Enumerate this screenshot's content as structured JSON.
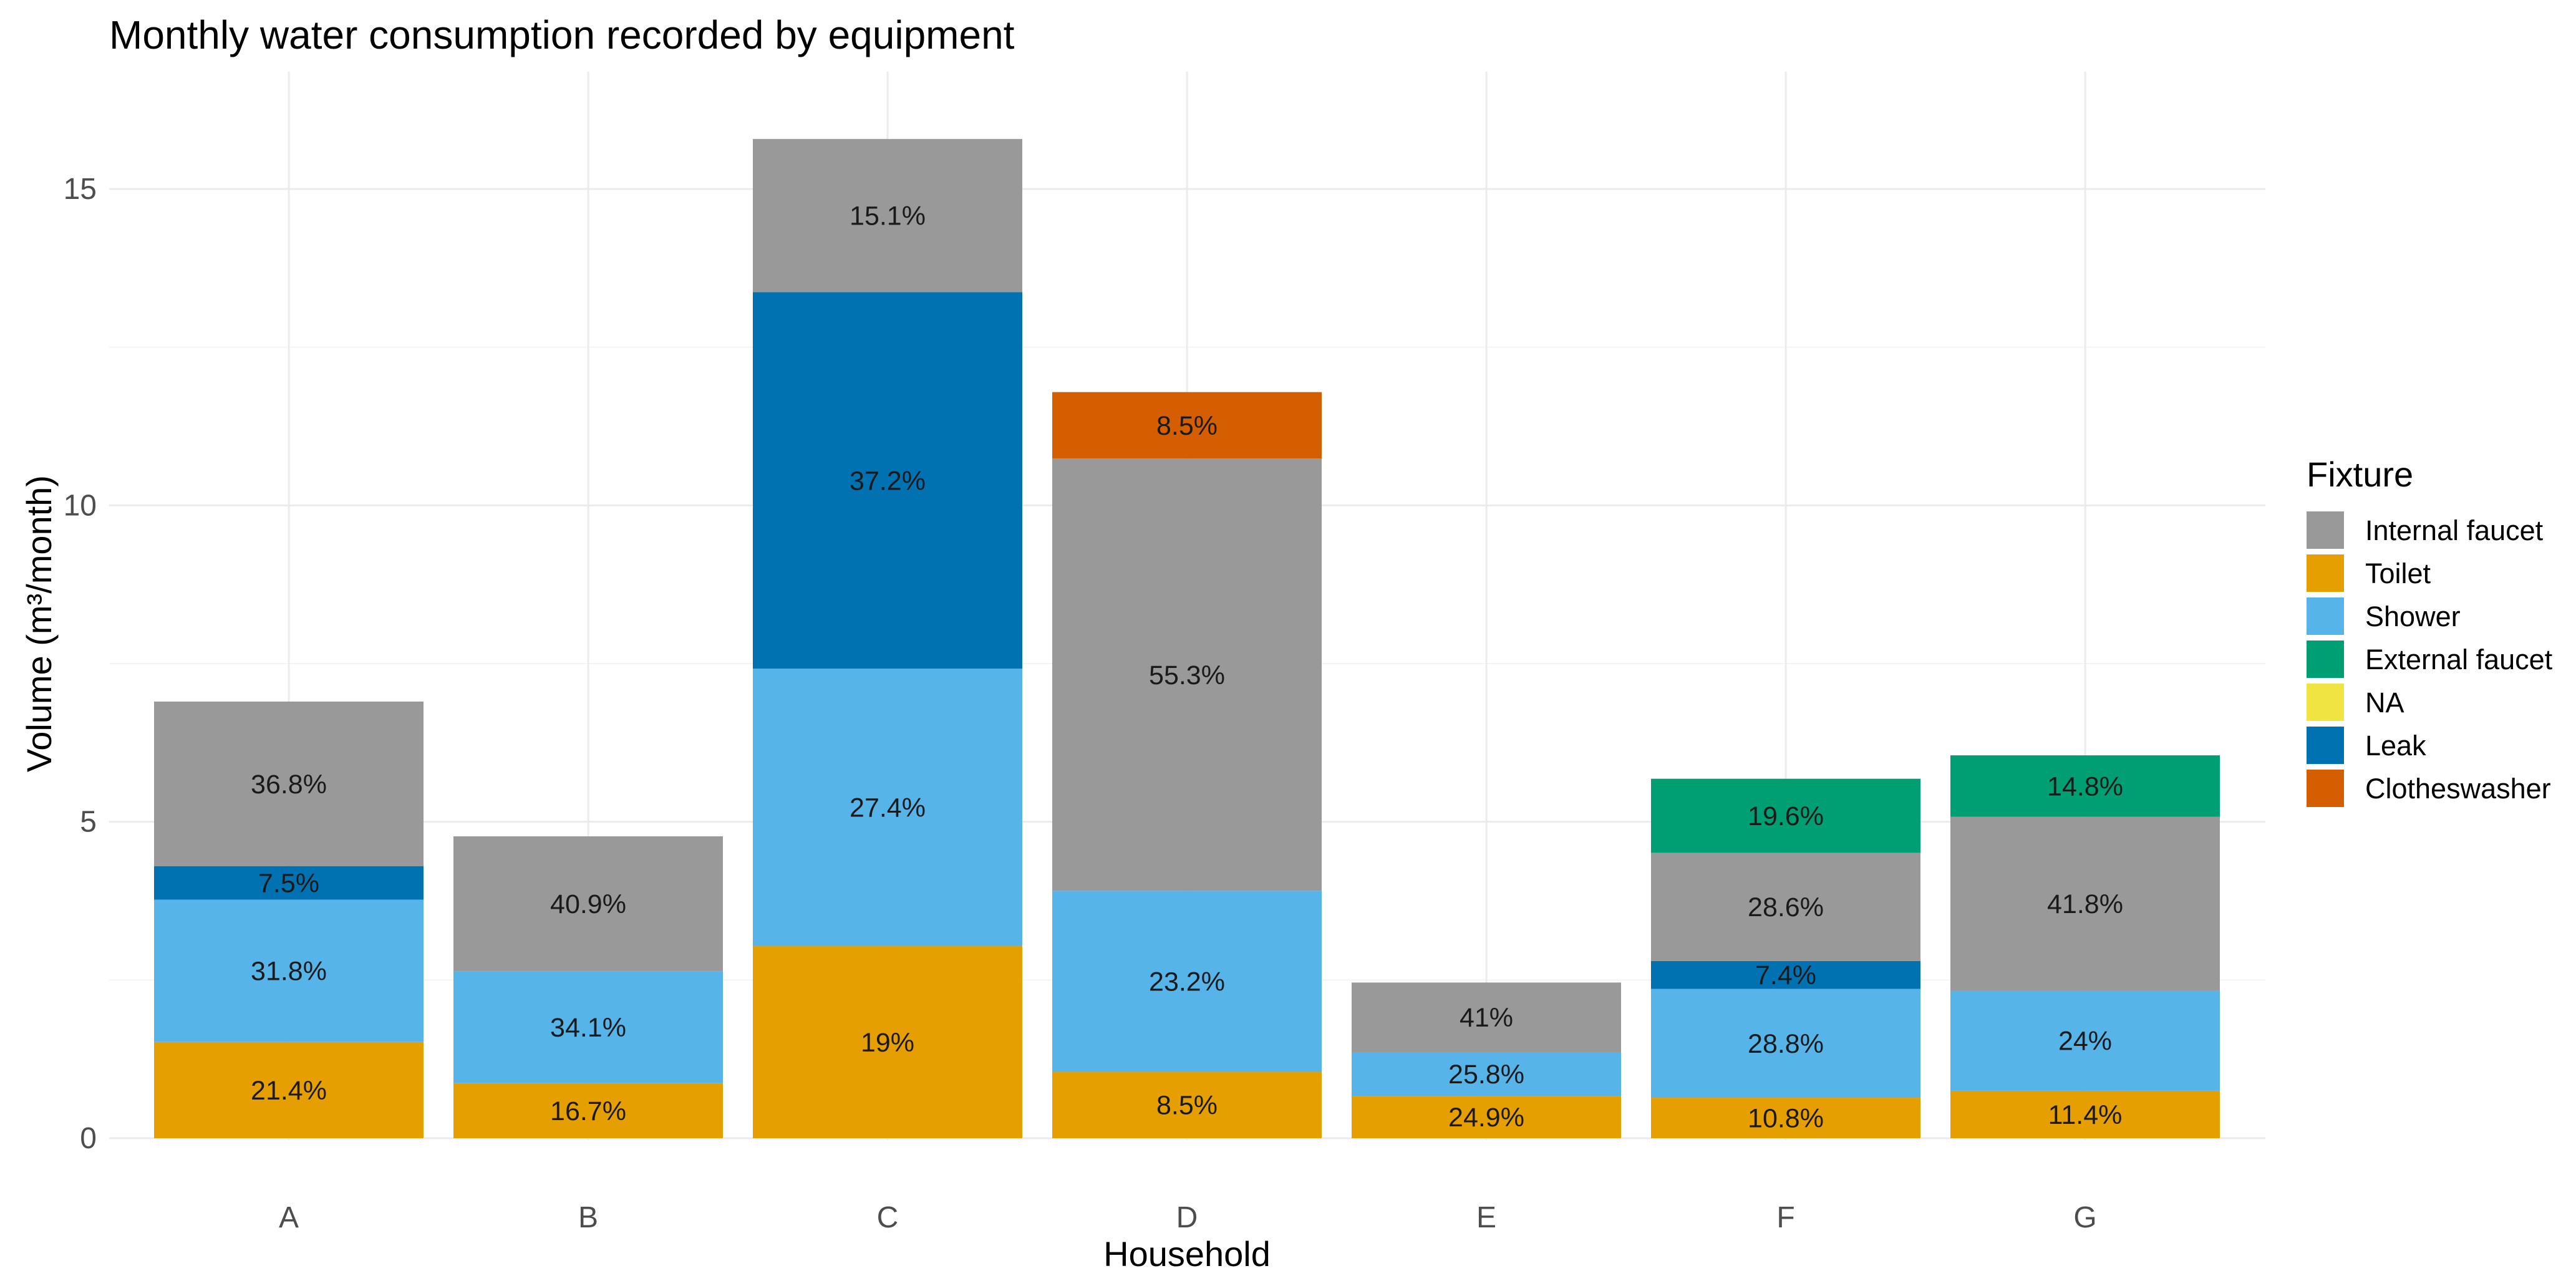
{
  "chart_data": {
    "type": "bar",
    "stacked": true,
    "title": "Monthly water consumption recorded by equipment",
    "xlabel": "Household",
    "ylabel": "Volume (m³/month)",
    "ylim": [
      0,
      16.0
    ],
    "yticks": [
      0,
      5,
      10,
      15
    ],
    "grid": true,
    "categories": [
      "A",
      "B",
      "C",
      "D",
      "E",
      "F",
      "G"
    ],
    "legend": {
      "title": "Fixture",
      "position": "right",
      "entries": [
        {
          "name": "Internal faucet",
          "color": "#999999"
        },
        {
          "name": "Toilet",
          "color": "#E69F00"
        },
        {
          "name": "Shower",
          "color": "#56B4E9"
        },
        {
          "name": "External faucet",
          "color": "#009E73"
        },
        {
          "name": "NA",
          "color": "#F0E442"
        },
        {
          "name": "Leak",
          "color": "#0072B2"
        },
        {
          "name": "Clotheswasher",
          "color": "#D55E00"
        }
      ]
    },
    "stack_order": [
      "Toilet",
      "Shower",
      "Leak",
      "Internal faucet",
      "External faucet",
      "Clotheswasher"
    ],
    "series": [
      {
        "name": "Toilet",
        "color": "#E69F00",
        "values": [
          1.52,
          0.87,
          3.04,
          1.05,
          0.67,
          0.64,
          0.75
        ],
        "labels": [
          "21.4%",
          "16.7%",
          "19%",
          "8.5%",
          "24.9%",
          "10.8%",
          "11.4%"
        ]
      },
      {
        "name": "Shower",
        "color": "#56B4E9",
        "values": [
          2.25,
          1.77,
          4.38,
          2.86,
          0.69,
          1.72,
          1.58
        ],
        "labels": [
          "31.8%",
          "34.1%",
          "27.4%",
          "23.2%",
          "25.8%",
          "28.8%",
          "24%"
        ]
      },
      {
        "name": "Leak",
        "color": "#0072B2",
        "values": [
          0.53,
          0,
          5.95,
          0,
          0,
          0.44,
          0
        ],
        "labels": [
          "7.5%",
          "",
          "37.2%",
          "",
          "",
          "7.4%",
          ""
        ]
      },
      {
        "name": "Internal faucet",
        "color": "#999999",
        "values": [
          2.6,
          2.13,
          2.42,
          6.83,
          1.1,
          1.71,
          2.75
        ],
        "labels": [
          "36.8%",
          "40.9%",
          "15.1%",
          "55.3%",
          "41%",
          "28.6%",
          "41.8%"
        ]
      },
      {
        "name": "External faucet",
        "color": "#009E73",
        "values": [
          0,
          0,
          0,
          0,
          0,
          1.17,
          0.97
        ],
        "labels": [
          "",
          "",
          "",
          "",
          "",
          "19.6%",
          "14.8%"
        ]
      },
      {
        "name": "Clotheswasher",
        "color": "#D55E00",
        "values": [
          0,
          0,
          0,
          1.05,
          0,
          0,
          0
        ],
        "labels": [
          "",
          "",
          "",
          "8.5%",
          "",
          "",
          ""
        ]
      }
    ]
  }
}
